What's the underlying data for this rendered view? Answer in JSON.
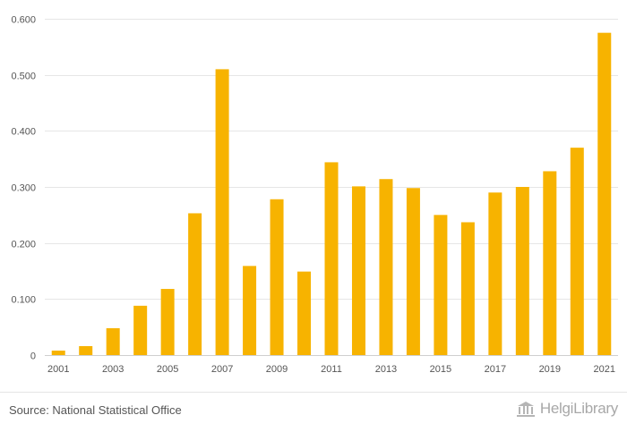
{
  "chart_data": {
    "type": "bar",
    "title": "",
    "xlabel": "",
    "ylabel": "",
    "ylim": [
      0,
      0.6
    ],
    "y_ticks": [
      "0",
      "0.100",
      "0.200",
      "0.300",
      "0.400",
      "0.500",
      "0.600"
    ],
    "y_tick_values": [
      0,
      0.1,
      0.2,
      0.3,
      0.4,
      0.5,
      0.6
    ],
    "categories": [
      "2001",
      "2002",
      "2003",
      "2004",
      "2005",
      "2006",
      "2007",
      "2008",
      "2009",
      "2010",
      "2011",
      "2012",
      "2013",
      "2014",
      "2015",
      "2016",
      "2017",
      "2018",
      "2019",
      "2020",
      "2021"
    ],
    "x_tick_labels": [
      "2001",
      "",
      "2003",
      "",
      "2005",
      "",
      "2007",
      "",
      "2009",
      "",
      "2011",
      "",
      "2013",
      "",
      "2015",
      "",
      "2017",
      "",
      "2019",
      "",
      "2021"
    ],
    "values": [
      0.008,
      0.016,
      0.048,
      0.088,
      0.118,
      0.253,
      0.51,
      0.159,
      0.278,
      0.149,
      0.344,
      0.301,
      0.314,
      0.298,
      0.25,
      0.237,
      0.29,
      0.3,
      0.328,
      0.37,
      0.575
    ],
    "grid": true,
    "bar_color": "#f7b300"
  },
  "footer": {
    "source": "Source: National Statistical Office",
    "brand": "HelgiLibrary",
    "brand_icon": "library-building-icon"
  }
}
